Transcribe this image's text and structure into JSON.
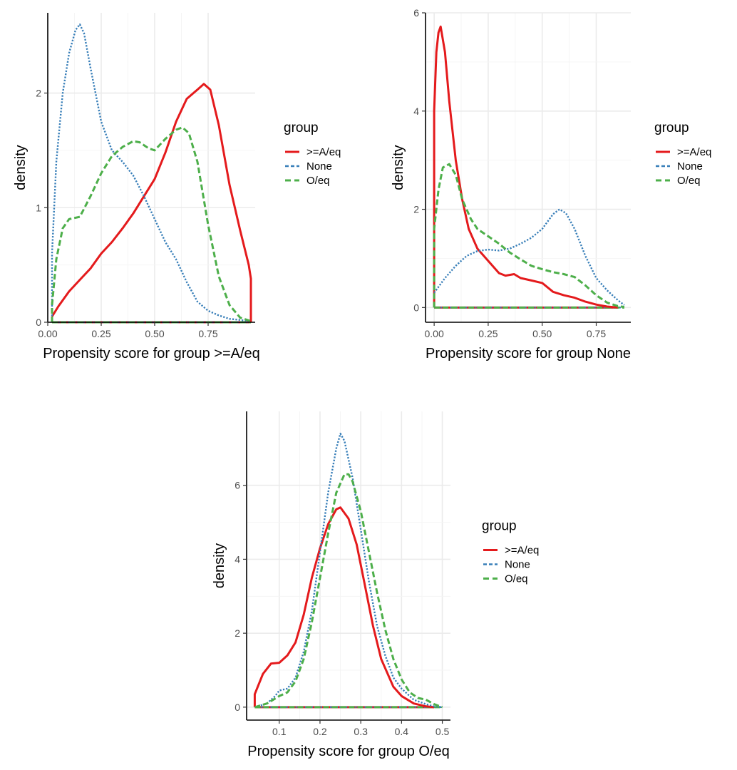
{
  "legend_title": "group",
  "colors": {
    "A": "#e41a1c",
    "None": "#377eb8",
    "O": "#4daf4a"
  },
  "chart_data": [
    {
      "type": "line",
      "xlabel": "Propensity score for group >=A/eq",
      "ylabel": "density",
      "xlim": [
        0.0,
        0.97
      ],
      "ylim": [
        0,
        2.7
      ],
      "x_ticks": [
        0.0,
        0.25,
        0.5,
        0.75
      ],
      "x_tick_labels": [
        "0.00",
        "0.25",
        "0.50",
        "0.75"
      ],
      "y_ticks": [
        0,
        1,
        2
      ],
      "y_tick_labels": [
        "0",
        "1",
        "2"
      ],
      "grid": true,
      "legend_position": "right",
      "series": [
        {
          "name": ">=A/eq",
          "style": "solid",
          "x": [
            0.02,
            0.05,
            0.1,
            0.15,
            0.2,
            0.25,
            0.3,
            0.35,
            0.4,
            0.45,
            0.5,
            0.55,
            0.6,
            0.65,
            0.7,
            0.73,
            0.76,
            0.8,
            0.85,
            0.9,
            0.94,
            0.95,
            0.95
          ],
          "y": [
            0.05,
            0.14,
            0.27,
            0.37,
            0.47,
            0.6,
            0.7,
            0.82,
            0.95,
            1.1,
            1.25,
            1.48,
            1.75,
            1.95,
            2.03,
            2.08,
            2.03,
            1.72,
            1.2,
            0.8,
            0.5,
            0.38,
            0
          ]
        },
        {
          "name": "None",
          "style": "dotted",
          "x": [
            0.02,
            0.02,
            0.04,
            0.07,
            0.1,
            0.13,
            0.15,
            0.17,
            0.2,
            0.25,
            0.3,
            0.35,
            0.4,
            0.45,
            0.5,
            0.55,
            0.6,
            0.65,
            0.7,
            0.75,
            0.8,
            0.85,
            0.9,
            0.95
          ],
          "y": [
            0,
            0.6,
            1.4,
            2.0,
            2.35,
            2.55,
            2.6,
            2.52,
            2.22,
            1.75,
            1.5,
            1.4,
            1.28,
            1.1,
            0.9,
            0.7,
            0.55,
            0.35,
            0.18,
            0.1,
            0.06,
            0.03,
            0.02,
            0.01
          ]
        },
        {
          "name": "O/eq",
          "style": "dashed",
          "x": [
            0.02,
            0.02,
            0.04,
            0.07,
            0.1,
            0.15,
            0.2,
            0.25,
            0.3,
            0.35,
            0.4,
            0.43,
            0.47,
            0.5,
            0.55,
            0.6,
            0.63,
            0.66,
            0.7,
            0.75,
            0.8,
            0.85,
            0.9,
            0.95
          ],
          "y": [
            0,
            0.15,
            0.55,
            0.82,
            0.9,
            0.92,
            1.1,
            1.3,
            1.45,
            1.53,
            1.58,
            1.57,
            1.52,
            1.5,
            1.6,
            1.68,
            1.7,
            1.65,
            1.4,
            0.85,
            0.4,
            0.15,
            0.04,
            0.01
          ]
        }
      ]
    },
    {
      "type": "line",
      "xlabel": "Propensity score for group None",
      "ylabel": "density",
      "xlim": [
        -0.04,
        0.91
      ],
      "ylim": [
        -0.3,
        6.0
      ],
      "x_ticks": [
        0.0,
        0.25,
        0.5,
        0.75
      ],
      "x_tick_labels": [
        "0.00",
        "0.25",
        "0.50",
        "0.75"
      ],
      "y_ticks": [
        0,
        2,
        4,
        6
      ],
      "y_tick_labels": [
        "0",
        "2",
        "4",
        "6"
      ],
      "grid": true,
      "legend_position": "right",
      "series": [
        {
          "name": ">=A/eq",
          "style": "solid",
          "x": [
            0.0,
            0.0,
            0.01,
            0.02,
            0.03,
            0.05,
            0.07,
            0.1,
            0.13,
            0.16,
            0.2,
            0.25,
            0.3,
            0.33,
            0.37,
            0.4,
            0.45,
            0.5,
            0.55,
            0.6,
            0.65,
            0.7,
            0.75,
            0.8,
            0.85
          ],
          "y": [
            0,
            4.0,
            5.2,
            5.6,
            5.72,
            5.2,
            4.2,
            3.0,
            2.2,
            1.6,
            1.2,
            0.95,
            0.7,
            0.65,
            0.68,
            0.6,
            0.55,
            0.5,
            0.32,
            0.25,
            0.2,
            0.12,
            0.06,
            0.02,
            0.0
          ]
        },
        {
          "name": "None",
          "style": "dotted",
          "x": [
            0.0,
            0.05,
            0.1,
            0.15,
            0.2,
            0.25,
            0.3,
            0.35,
            0.4,
            0.45,
            0.5,
            0.55,
            0.58,
            0.61,
            0.65,
            0.7,
            0.75,
            0.8,
            0.85,
            0.88
          ],
          "y": [
            0.3,
            0.6,
            0.85,
            1.05,
            1.15,
            1.18,
            1.16,
            1.2,
            1.3,
            1.42,
            1.6,
            1.9,
            2.0,
            1.92,
            1.6,
            1.05,
            0.6,
            0.35,
            0.15,
            0.05
          ]
        },
        {
          "name": "O/eq",
          "style": "dashed",
          "x": [
            0.0,
            0.0,
            0.02,
            0.04,
            0.07,
            0.1,
            0.13,
            0.17,
            0.2,
            0.25,
            0.3,
            0.35,
            0.4,
            0.45,
            0.5,
            0.55,
            0.6,
            0.65,
            0.7,
            0.75,
            0.8,
            0.85,
            0.88
          ],
          "y": [
            0,
            1.6,
            2.4,
            2.85,
            2.92,
            2.7,
            2.2,
            1.8,
            1.6,
            1.45,
            1.3,
            1.12,
            0.98,
            0.85,
            0.78,
            0.72,
            0.68,
            0.62,
            0.45,
            0.25,
            0.1,
            0.03,
            0.01
          ]
        }
      ]
    },
    {
      "type": "line",
      "xlabel": "Propensity score for group O/eq",
      "ylabel": "density",
      "xlim": [
        0.02,
        0.52
      ],
      "ylim": [
        -0.35,
        8.0
      ],
      "x_ticks": [
        0.1,
        0.2,
        0.3,
        0.4,
        0.5
      ],
      "x_tick_labels": [
        "0.1",
        "0.2",
        "0.3",
        "0.4",
        "0.5"
      ],
      "y_ticks": [
        0,
        2,
        4,
        6
      ],
      "y_tick_labels": [
        "0",
        "2",
        "4",
        "6"
      ],
      "grid": true,
      "legend_position": "right",
      "series": [
        {
          "name": ">=A/eq",
          "style": "solid",
          "x": [
            0.04,
            0.04,
            0.06,
            0.08,
            0.1,
            0.12,
            0.14,
            0.16,
            0.18,
            0.2,
            0.22,
            0.24,
            0.25,
            0.27,
            0.29,
            0.31,
            0.33,
            0.35,
            0.38,
            0.4,
            0.43,
            0.46,
            0.48
          ],
          "y": [
            0,
            0.35,
            0.9,
            1.18,
            1.2,
            1.4,
            1.75,
            2.5,
            3.5,
            4.3,
            4.95,
            5.35,
            5.4,
            5.1,
            4.4,
            3.3,
            2.2,
            1.3,
            0.55,
            0.3,
            0.1,
            0.02,
            0.0
          ]
        },
        {
          "name": "None",
          "style": "dotted",
          "x": [
            0.04,
            0.07,
            0.09,
            0.1,
            0.12,
            0.14,
            0.16,
            0.18,
            0.2,
            0.22,
            0.24,
            0.25,
            0.26,
            0.28,
            0.3,
            0.32,
            0.34,
            0.36,
            0.38,
            0.4,
            0.43,
            0.46,
            0.48,
            0.5
          ],
          "y": [
            0.0,
            0.1,
            0.3,
            0.45,
            0.5,
            0.8,
            1.5,
            2.6,
            4.2,
            5.8,
            7.0,
            7.4,
            7.2,
            6.2,
            4.8,
            3.4,
            2.2,
            1.4,
            0.8,
            0.5,
            0.2,
            0.08,
            0.02,
            0.0
          ]
        },
        {
          "name": "O/eq",
          "style": "dashed",
          "x": [
            0.04,
            0.07,
            0.1,
            0.12,
            0.14,
            0.16,
            0.18,
            0.2,
            0.22,
            0.24,
            0.26,
            0.27,
            0.28,
            0.3,
            0.32,
            0.34,
            0.36,
            0.38,
            0.4,
            0.42,
            0.44,
            0.46,
            0.48,
            0.5
          ],
          "y": [
            0.0,
            0.1,
            0.3,
            0.4,
            0.7,
            1.3,
            2.3,
            3.5,
            4.7,
            5.8,
            6.3,
            6.3,
            6.1,
            5.3,
            4.2,
            3.1,
            2.1,
            1.3,
            0.75,
            0.4,
            0.25,
            0.2,
            0.08,
            0.0
          ]
        }
      ]
    }
  ]
}
